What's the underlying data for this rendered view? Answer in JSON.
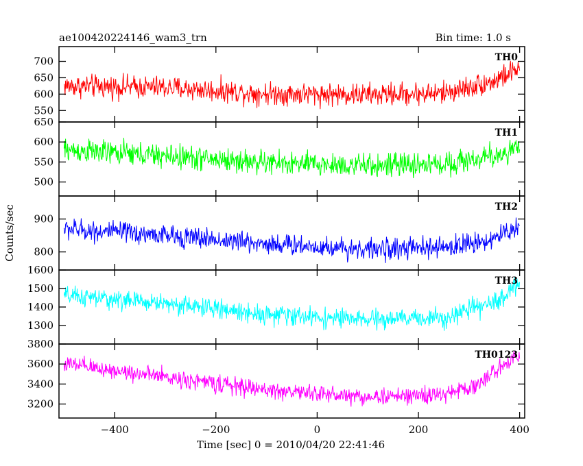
{
  "header": {
    "title": "ae100420224146_wam3_trn",
    "bin_time": "Bin time: 1.0 s"
  },
  "chart_data": {
    "type": "line",
    "xlabel": "Time [sec] 0 = 2010/04/20 22:41:46",
    "ylabel": "Counts/sec",
    "xlim": [
      -510,
      410
    ],
    "x_ticks": [
      -400,
      -200,
      0,
      200,
      400
    ],
    "x_tick_labels": [
      "−400",
      "−200",
      "0",
      "200",
      "400"
    ],
    "bin_seconds": 1.0,
    "x_start": -500,
    "x_end": 400,
    "series": [
      {
        "name": "TH0",
        "color": "#ff0000",
        "ylim": [
          515,
          745
        ],
        "ticks": [
          550,
          600,
          650,
          700
        ],
        "tick_labels": [
          "550",
          "600",
          "650",
          "700"
        ],
        "noise": 30,
        "trend": [
          [
            -500,
            625
          ],
          [
            -300,
            620
          ],
          [
            -100,
            602
          ],
          [
            100,
            598
          ],
          [
            250,
            603
          ],
          [
            350,
            640
          ],
          [
            400,
            680
          ]
        ]
      },
      {
        "name": "TH1",
        "color": "#00ff00",
        "ylim": [
          465,
          650
        ],
        "ticks": [
          500,
          550,
          600,
          650
        ],
        "tick_labels": [
          "500",
          "550",
          "600",
          "650"
        ],
        "noise": 26,
        "trend": [
          [
            -500,
            580
          ],
          [
            -300,
            565
          ],
          [
            -100,
            548
          ],
          [
            100,
            540
          ],
          [
            250,
            545
          ],
          [
            350,
            565
          ],
          [
            400,
            585
          ]
        ]
      },
      {
        "name": "TH2",
        "color": "#0000ff",
        "ylim": [
          745,
          970
        ],
        "ticks": [
          800,
          900
        ],
        "tick_labels": [
          "800",
          "900"
        ],
        "noise": 28,
        "trend": [
          [
            -500,
            870
          ],
          [
            -300,
            850
          ],
          [
            -100,
            825
          ],
          [
            100,
            808
          ],
          [
            250,
            812
          ],
          [
            350,
            840
          ],
          [
            400,
            880
          ]
        ]
      },
      {
        "name": "TH3",
        "color": "#00ffff",
        "ylim": [
          1200,
          1600
        ],
        "ticks": [
          1300,
          1400,
          1500,
          1600
        ],
        "tick_labels": [
          "1300",
          "1400",
          "1500",
          "1600"
        ],
        "noise": 45,
        "trend": [
          [
            -500,
            1460
          ],
          [
            -300,
            1420
          ],
          [
            -100,
            1360
          ],
          [
            100,
            1330
          ],
          [
            250,
            1345
          ],
          [
            350,
            1420
          ],
          [
            400,
            1530
          ]
        ]
      },
      {
        "name": "TH0123",
        "color": "#ff00ff",
        "ylim": [
          3060,
          3800
        ],
        "ticks": [
          3200,
          3400,
          3600,
          3800
        ],
        "tick_labels": [
          "3200",
          "3400",
          "3600",
          "3800"
        ],
        "noise": 75,
        "trend": [
          [
            -500,
            3600
          ],
          [
            -300,
            3470
          ],
          [
            -100,
            3340
          ],
          [
            100,
            3270
          ],
          [
            250,
            3290
          ],
          [
            320,
            3400
          ],
          [
            400,
            3720
          ]
        ]
      }
    ]
  }
}
